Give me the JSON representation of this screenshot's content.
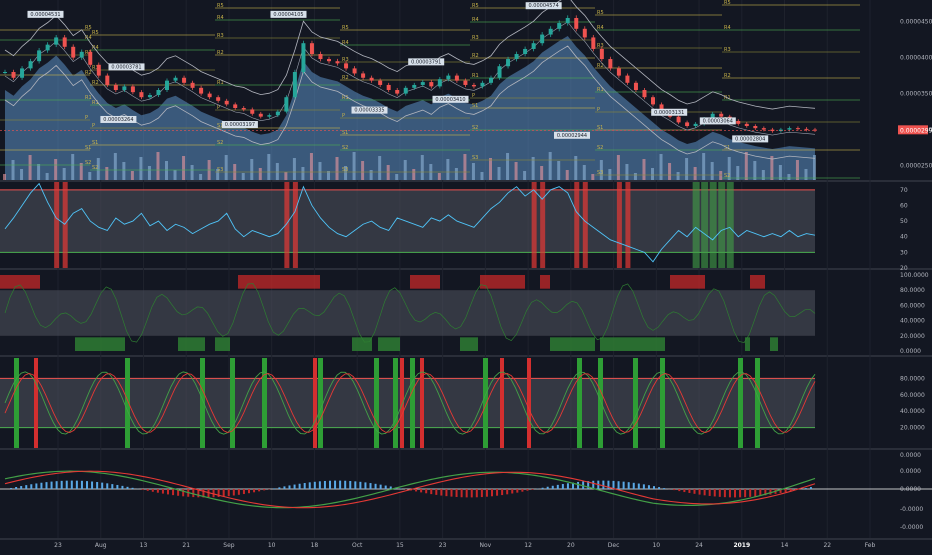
{
  "chart_data": [
    {
      "panel": "price",
      "type": "candlestick",
      "title": "",
      "colors": {
        "up": "#26a69a",
        "down": "#ef5350",
        "bb": "#b2b5be",
        "area": "#5b8fc4",
        "pivot": "#c9b44a",
        "pivot_green": "#4caf50"
      },
      "yaxis_ticks": [
        "0.0000450",
        "0.0000400",
        "0.0000350",
        "0.0000300",
        "0.0000250"
      ],
      "ylim": [
        2.3e-05,
        4.8e-05
      ],
      "last_price_label": "0.0000299",
      "price_series": [
        3.8e-05,
        3.72e-05,
        3.85e-05,
        3.95e-05,
        4.1e-05,
        4.18e-05,
        4.28e-05,
        4.15e-05,
        4e-05,
        4.08e-05,
        3.9e-05,
        3.75e-05,
        3.62e-05,
        3.55e-05,
        3.6e-05,
        3.52e-05,
        3.45e-05,
        3.48e-05,
        3.55e-05,
        3.68e-05,
        3.72e-05,
        3.65e-05,
        3.58e-05,
        3.5e-05,
        3.45e-05,
        3.4e-05,
        3.35e-05,
        3.3e-05,
        3.28e-05,
        3.22e-05,
        3.18e-05,
        3.2e-05,
        3.25e-05,
        3.45e-05,
        3.8e-05,
        4.2e-05,
        4.05e-05,
        3.98e-05,
        3.95e-05,
        3.92e-05,
        3.85e-05,
        3.78e-05,
        3.72e-05,
        3.68e-05,
        3.62e-05,
        3.55e-05,
        3.5e-05,
        3.58e-05,
        3.62e-05,
        3.66e-05,
        3.6e-05,
        3.7e-05,
        3.75e-05,
        3.68e-05,
        3.62e-05,
        3.6e-05,
        3.65e-05,
        3.72e-05,
        3.88e-05,
        3.98e-05,
        4.05e-05,
        4.12e-05,
        4.2e-05,
        4.32e-05,
        4.4e-05,
        4.48e-05,
        4.55e-05,
        4.4e-05,
        4.28e-05,
        4.12e-05,
        3.98e-05,
        3.85e-05,
        3.75e-05,
        3.65e-05,
        3.55e-05,
        3.45e-05,
        3.35e-05,
        3.25e-05,
        3.18e-05,
        3.1e-05,
        3.05e-05,
        3.08e-05,
        3.15e-05,
        3.22e-05,
        3.18e-05,
        3.12e-05,
        3.08e-05,
        3.05e-05,
        3.02e-05,
        3e-05,
        2.98e-05,
        3e-05,
        3.02e-05,
        3.01e-05,
        3e-05,
        2.99e-05
      ],
      "labels": [
        {
          "text": "0.00004531",
          "xi": 0.05,
          "y": 4.58e-05
        },
        {
          "text": "0.00004105",
          "xi": 0.35,
          "y": 4.58e-05
        },
        {
          "text": "0.00004574",
          "xi": 0.665,
          "y": 4.7e-05
        },
        {
          "text": "0.00003781",
          "xi": 0.15,
          "y": 3.85e-05
        },
        {
          "text": "0.00003791",
          "xi": 0.52,
          "y": 3.92e-05
        },
        {
          "text": "0.00003264",
          "xi": 0.14,
          "y": 3.12e-05
        },
        {
          "text": "0.00003197",
          "xi": 0.29,
          "y": 3.05e-05
        },
        {
          "text": "0.00003335",
          "xi": 0.45,
          "y": 3.25e-05
        },
        {
          "text": "0.00003410",
          "xi": 0.55,
          "y": 3.4e-05
        },
        {
          "text": "0.00002944",
          "xi": 0.7,
          "y": 2.9e-05
        },
        {
          "text": "0.00003131",
          "xi": 0.82,
          "y": 3.22e-05
        },
        {
          "text": "0.00003064",
          "xi": 0.88,
          "y": 3.1e-05
        },
        {
          "text": "0.00002804",
          "xi": 0.92,
          "y": 2.85e-05
        }
      ],
      "pivot_labels": [
        "R5",
        "R4",
        "R3",
        "R2",
        "R1",
        "P",
        "S1",
        "S2",
        "S3"
      ]
    },
    {
      "panel": "rsi",
      "type": "line",
      "yaxis_ticks": [
        "70",
        "60",
        "50",
        "40",
        "30",
        "20"
      ],
      "ylim": [
        20,
        75
      ],
      "band": [
        30,
        70
      ],
      "values": [
        45,
        52,
        60,
        68,
        74,
        62,
        52,
        48,
        55,
        58,
        50,
        46,
        44,
        52,
        48,
        50,
        55,
        47,
        50,
        44,
        48,
        46,
        42,
        45,
        48,
        50,
        55,
        45,
        40,
        44,
        42,
        40,
        42,
        48,
        56,
        72,
        60,
        52,
        46,
        42,
        40,
        44,
        48,
        50,
        46,
        44,
        52,
        50,
        48,
        46,
        52,
        50,
        54,
        50,
        48,
        46,
        52,
        58,
        62,
        68,
        72,
        66,
        70,
        64,
        70,
        72,
        68,
        56,
        50,
        46,
        42,
        38,
        36,
        34,
        32,
        30,
        24,
        32,
        38,
        44,
        40,
        46,
        42,
        38,
        44,
        46,
        40,
        44,
        42,
        40,
        42,
        40,
        44,
        40,
        42,
        41
      ],
      "overbought_bars": [
        6,
        7,
        33,
        34,
        62,
        63,
        67,
        68,
        72,
        73
      ],
      "oversold_bars": [
        81,
        82,
        83,
        84,
        85
      ]
    },
    {
      "panel": "stoch_rsi",
      "type": "line",
      "yaxis_ticks": [
        "100.0000",
        "80.0000",
        "60.0000",
        "40.0000",
        "20.0000",
        "0.0000"
      ],
      "ylim": [
        0,
        100
      ]
    },
    {
      "panel": "stochastic",
      "type": "line",
      "yaxis_ticks": [
        "80.0000",
        "60.0000",
        "40.0000",
        "20.0000"
      ],
      "ylim": [
        0,
        100
      ],
      "band": [
        20,
        80
      ]
    },
    {
      "panel": "macd",
      "type": "line",
      "yaxis_ticks": [
        "0.0000",
        "0.0000",
        "0.0000",
        "-0.0000",
        "-0.0000"
      ]
    }
  ],
  "x_axis": {
    "ticks": [
      "23",
      "Aug",
      "13",
      "21",
      "Sep",
      "10",
      "18",
      "Oct",
      "15",
      "23",
      "Nov",
      "12",
      "20",
      "Dec",
      "10",
      "24",
      "2019",
      "14",
      "22",
      "Feb"
    ]
  }
}
